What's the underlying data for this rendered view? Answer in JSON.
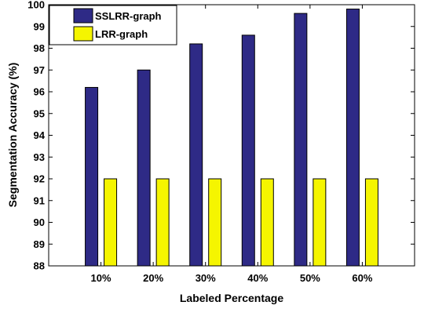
{
  "chart_data": {
    "type": "bar",
    "categories": [
      "10%",
      "20%",
      "30%",
      "40%",
      "50%",
      "60%"
    ],
    "series": [
      {
        "name": "SSLRR-graph",
        "values": [
          96.2,
          97.0,
          98.2,
          98.6,
          99.6,
          99.8
        ],
        "color": "#2e2a86"
      },
      {
        "name": "LRR-graph",
        "values": [
          92.0,
          92.0,
          92.0,
          92.0,
          92.0,
          92.0
        ],
        "color": "#f5f500"
      }
    ],
    "xlabel": "Labeled Percentage",
    "ylabel": "Segmentation Accuracy (%)",
    "ylim": [
      88,
      100
    ],
    "yticks": [
      88,
      89,
      90,
      91,
      92,
      93,
      94,
      95,
      96,
      97,
      98,
      99,
      100
    ],
    "grid": false,
    "legend_position": "top-left"
  }
}
